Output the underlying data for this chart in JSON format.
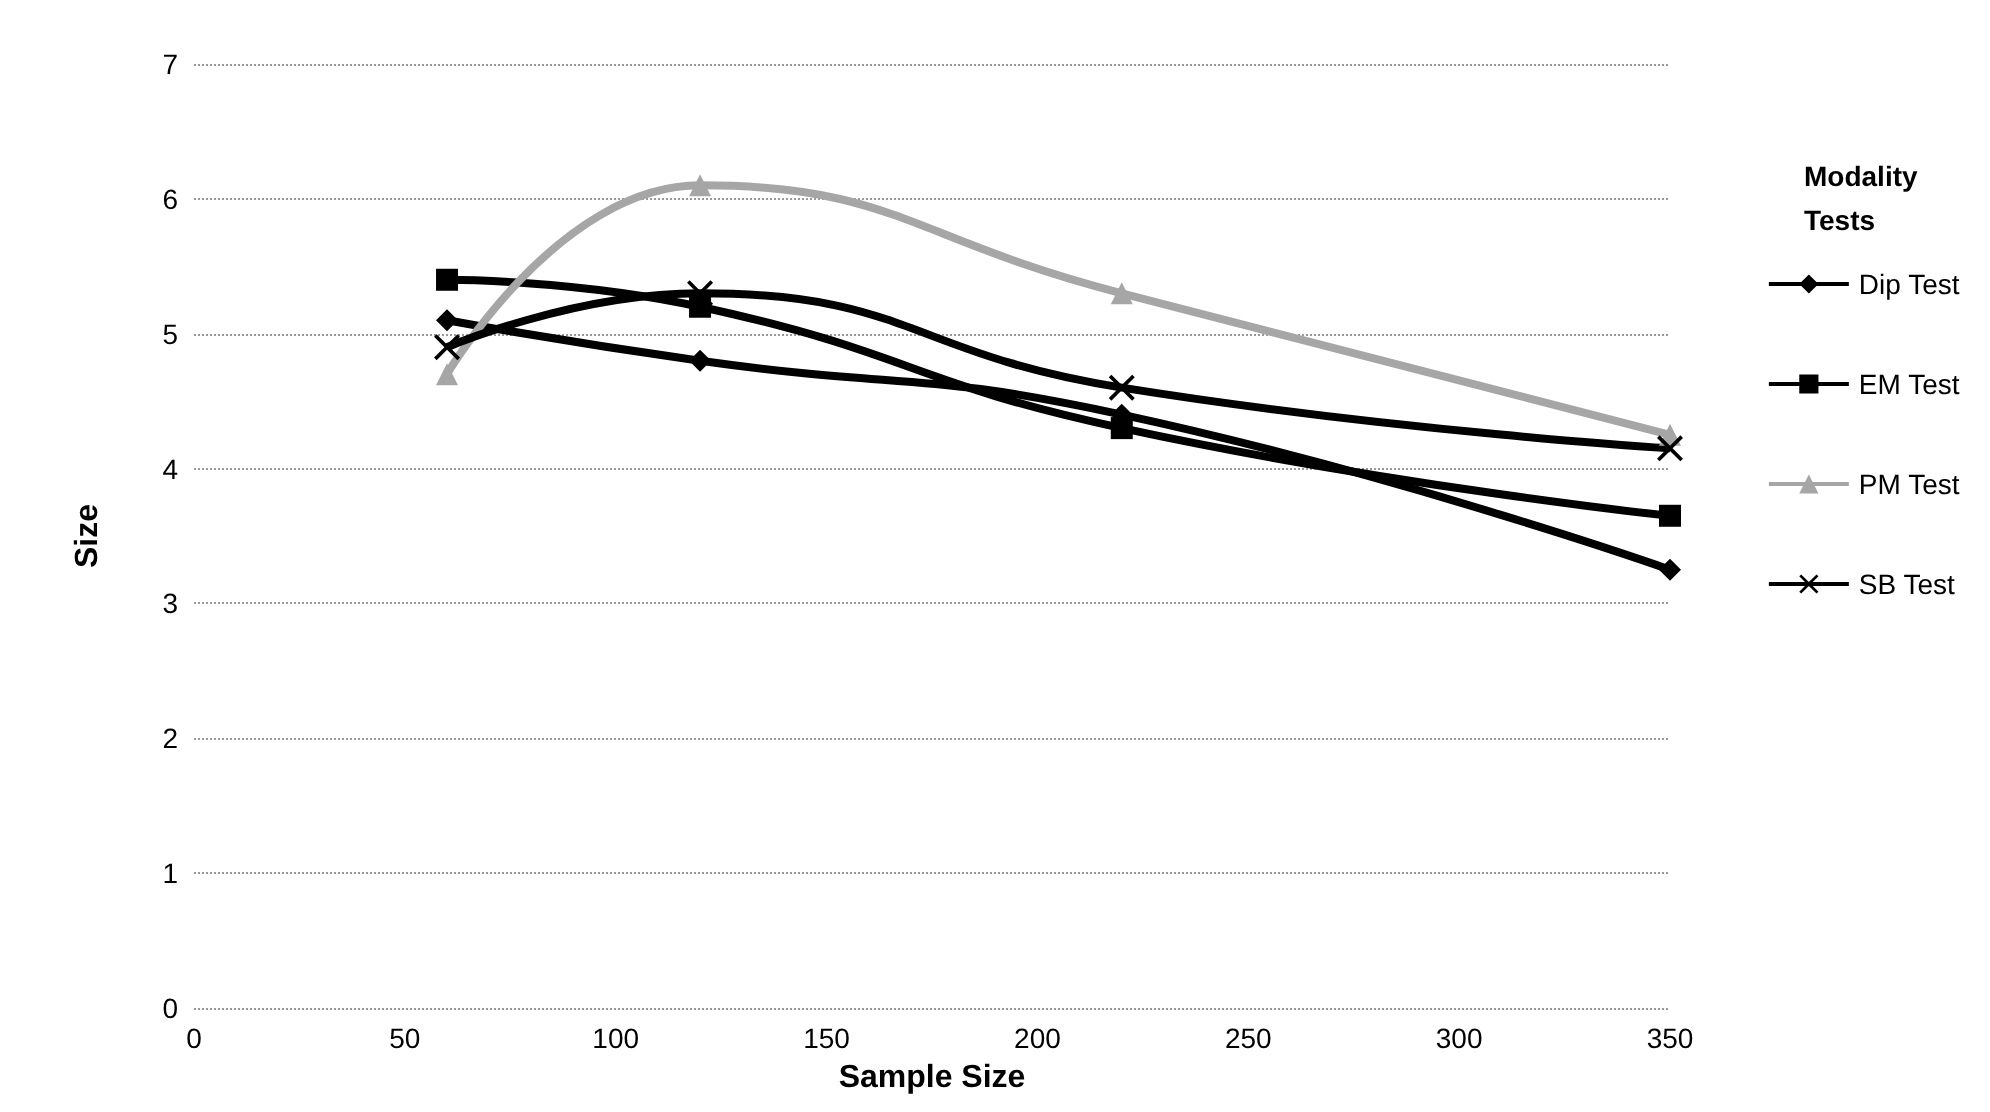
{
  "chart_data": {
    "type": "line",
    "xlabel": "Sample Size",
    "ylabel": "Size",
    "legend_title": "Modality Tests",
    "x": [
      60,
      120,
      220,
      350
    ],
    "series": [
      {
        "name": "Dip Test",
        "color": "#000000",
        "marker": "diamond",
        "values": [
          5.1,
          4.8,
          4.4,
          3.25
        ]
      },
      {
        "name": "EM Test",
        "color": "#000000",
        "marker": "square",
        "values": [
          5.4,
          5.2,
          4.3,
          3.65
        ]
      },
      {
        "name": "PM Test",
        "color": "#a6a6a6",
        "marker": "triangle",
        "values": [
          4.7,
          6.1,
          5.3,
          4.25
        ]
      },
      {
        "name": "SB Test",
        "color": "#000000",
        "marker": "cross",
        "values": [
          4.9,
          5.3,
          4.6,
          4.15
        ]
      }
    ],
    "xlim": [
      0,
      350
    ],
    "xticks": [
      0,
      50,
      100,
      150,
      200,
      250,
      300,
      350
    ],
    "ylim": [
      0,
      7
    ],
    "yticks": [
      0,
      1,
      2,
      3,
      4,
      5,
      6,
      7
    ],
    "grid": "y",
    "legend": "right",
    "line_style": "solid"
  }
}
